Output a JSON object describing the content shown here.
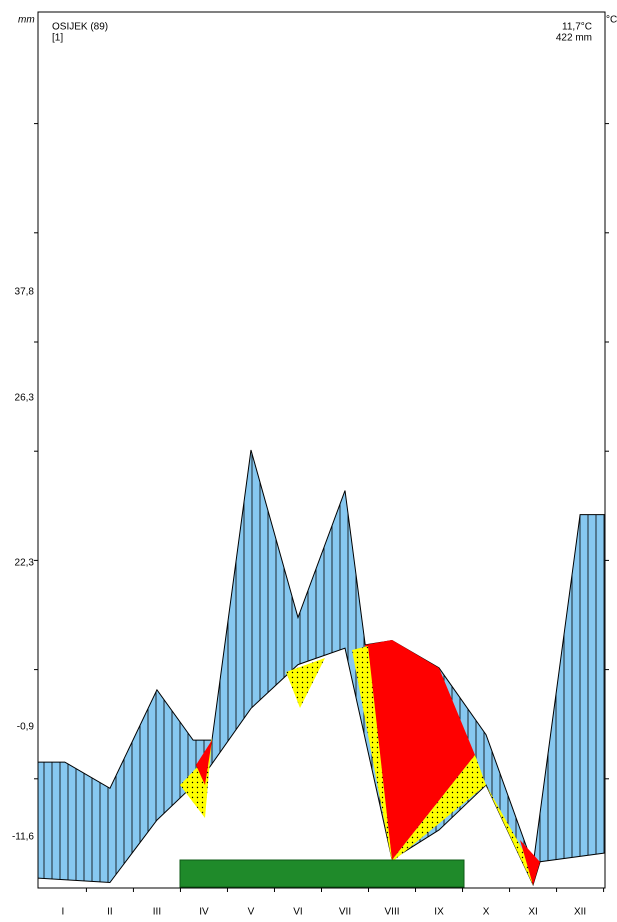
{
  "chart_data": {
    "type": "climate",
    "header": {
      "station": "OSIJEK (89)",
      "ref": "[1]",
      "temp": "11,7°C",
      "precip": "422 mm"
    },
    "y_unit": "mm",
    "y2_unit": "°C",
    "left_labels": [
      "37,8",
      "26,3",
      "22,3",
      "-0,9",
      "-11,6"
    ],
    "categories": [
      "I",
      "II",
      "III",
      "IV",
      "V",
      "VI",
      "VII",
      "VIII",
      "IX",
      "X",
      "XI",
      "XII"
    ],
    "xlim": [
      0.47,
      12.53
    ],
    "ylim": [
      0,
      80
    ],
    "humid_color": "#87c8f0",
    "line_color": "#000000",
    "series": [
      {
        "color": "#000000",
        "x": [
          0.47,
          1.04,
          2.0,
          3.0,
          3.77,
          4.17,
          5.0,
          6.0,
          7.0,
          7.43,
          8.0,
          9.0,
          10.0,
          11.0,
          12.0,
          12.53
        ],
        "values": [
          11.5,
          11.5,
          9.1,
          18.1,
          13.5,
          13.5,
          40.0,
          24.7,
          36.3,
          22.2,
          22.6,
          20.1,
          14.0,
          2.1,
          34.1,
          34.1
        ]
      },
      {
        "color": "#000000",
        "x": [
          0.47,
          2.0,
          3.0,
          4.0,
          5.0,
          6.0,
          7.0,
          8.0,
          9.0,
          10.0,
          11.0,
          11.15,
          12.53
        ],
        "values": [
          0.9,
          0.5,
          6.2,
          10.3,
          16.4,
          20.4,
          21.9,
          2.6,
          5.3,
          9.4,
          0.3,
          2.4,
          3.2
        ]
      }
    ]
  }
}
